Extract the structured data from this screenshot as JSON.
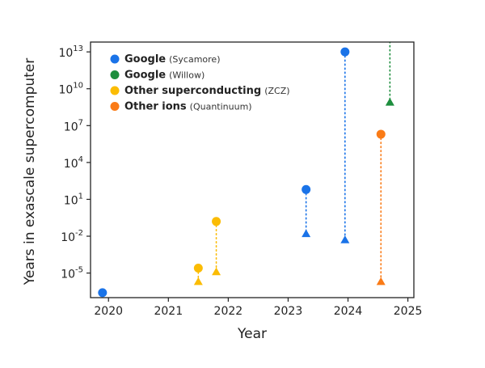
{
  "chart_data": {
    "type": "scatter",
    "title": "",
    "xlabel": "Year",
    "ylabel": "Years in exascale supercomputer",
    "y_scale": "log",
    "xlim": [
      2019.7,
      2025.1
    ],
    "ylim_log10": [
      -7,
      13.8
    ],
    "x_ticks": [
      "2020",
      "2021",
      "2022",
      "2023",
      "2024",
      "2025"
    ],
    "y_ticks": [
      {
        "exp": 13,
        "label": "10",
        "sup": "13"
      },
      {
        "exp": 10,
        "label": "10",
        "sup": "10"
      },
      {
        "exp": 7,
        "label": "10",
        "sup": "7"
      },
      {
        "exp": 4,
        "label": "10",
        "sup": "4"
      },
      {
        "exp": 1,
        "label": "10",
        "sup": "1"
      },
      {
        "exp": -2,
        "label": "10",
        "sup": "-2"
      },
      {
        "exp": -5,
        "label": "10",
        "sup": "-5"
      }
    ],
    "grid": false,
    "legend_position": "top-left",
    "marker_note": "circles and triangles are two values per experiment joined by a dotted line",
    "series": [
      {
        "name": "Google",
        "detail": "(Sycamore)",
        "color": "#1a73e8",
        "points": [
          {
            "x": 2019.9,
            "y_exp": -6.6,
            "marker": "circle"
          },
          {
            "x": 2023.3,
            "y_exp": 1.8,
            "marker": "circle"
          },
          {
            "x": 2023.3,
            "y_exp": -1.8,
            "marker": "triangle"
          },
          {
            "x": 2023.95,
            "y_exp": 13.0,
            "marker": "circle"
          },
          {
            "x": 2023.95,
            "y_exp": -2.3,
            "marker": "triangle"
          }
        ],
        "links": [
          [
            1,
            2
          ],
          [
            3,
            4
          ]
        ]
      },
      {
        "name": "Google",
        "detail": "(Willow)",
        "color": "#1e8e3e",
        "points": [
          {
            "x": 2024.7,
            "y_exp": 14.5,
            "marker": "circle"
          },
          {
            "x": 2024.7,
            "y_exp": 8.9,
            "marker": "triangle"
          }
        ],
        "links": [
          [
            0,
            1
          ]
        ]
      },
      {
        "name": "Other superconducting",
        "detail": "(ZCZ)",
        "color": "#fbbc04",
        "points": [
          {
            "x": 2021.5,
            "y_exp": -4.6,
            "marker": "circle"
          },
          {
            "x": 2021.5,
            "y_exp": -5.7,
            "marker": "triangle"
          },
          {
            "x": 2021.8,
            "y_exp": -0.8,
            "marker": "circle"
          },
          {
            "x": 2021.8,
            "y_exp": -4.9,
            "marker": "triangle"
          }
        ],
        "links": [
          [
            0,
            1
          ],
          [
            2,
            3
          ]
        ]
      },
      {
        "name": "Other ions",
        "detail": "(Quantinuum)",
        "color": "#fa7b17",
        "points": [
          {
            "x": 2024.55,
            "y_exp": 6.3,
            "marker": "circle"
          },
          {
            "x": 2024.55,
            "y_exp": -5.7,
            "marker": "triangle"
          }
        ],
        "links": [
          [
            0,
            1
          ]
        ]
      }
    ]
  }
}
